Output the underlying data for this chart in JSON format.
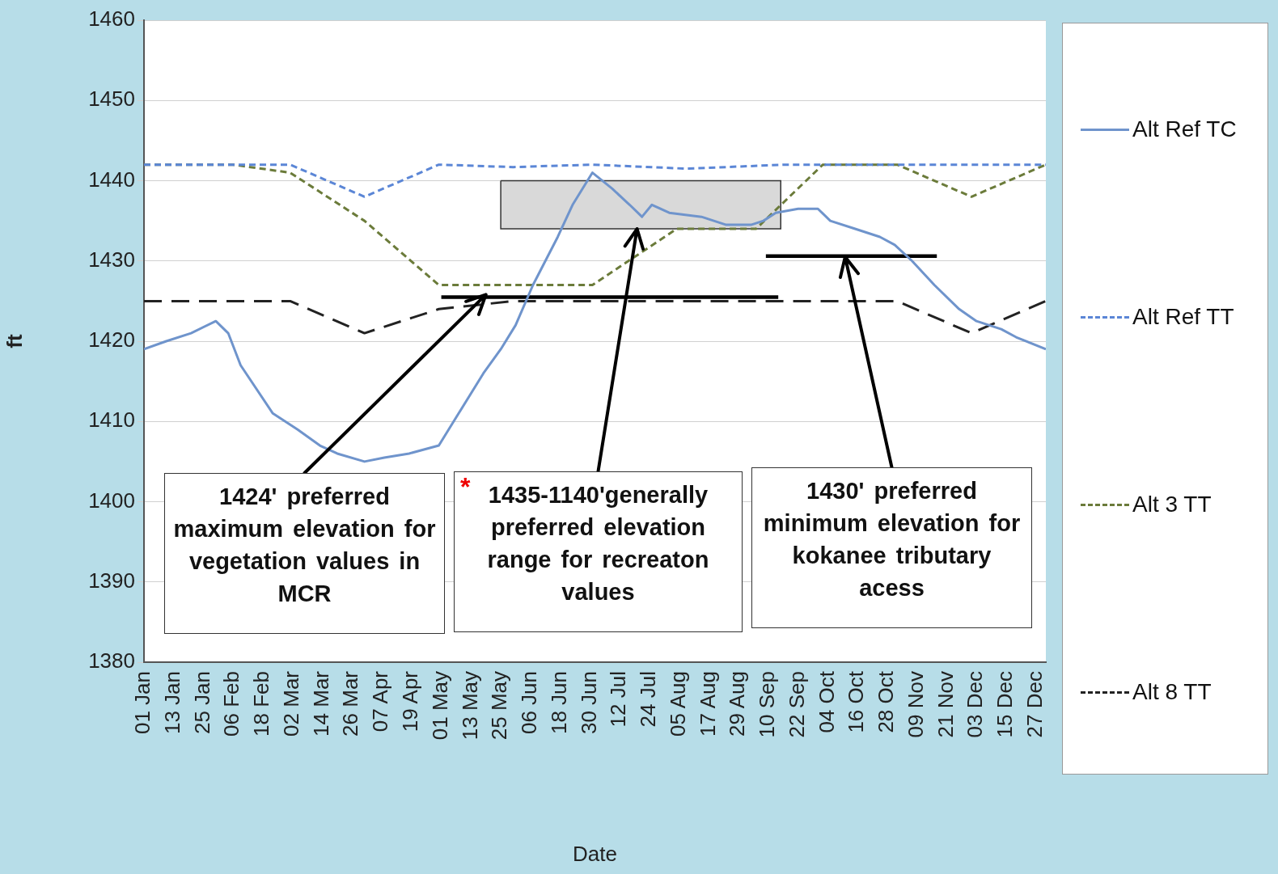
{
  "chart_data": {
    "type": "line",
    "xlabel": "Date",
    "ylabel": "ft",
    "xlim": [
      "--01-01",
      "--12-31"
    ],
    "ylim": [
      1380,
      1460
    ],
    "yticks": [
      1380,
      1390,
      1400,
      1410,
      1420,
      1430,
      1440,
      1450,
      1460
    ],
    "xticks": [
      {
        "value": "--01-01",
        "label": "01 Jan"
      },
      {
        "value": "--01-13",
        "label": "13 Jan"
      },
      {
        "value": "--01-25",
        "label": "25 Jan"
      },
      {
        "value": "--02-06",
        "label": "06 Feb"
      },
      {
        "value": "--02-18",
        "label": "18 Feb"
      },
      {
        "value": "--03-02",
        "label": "02 Mar"
      },
      {
        "value": "--03-14",
        "label": "14 Mar"
      },
      {
        "value": "--03-26",
        "label": "26 Mar"
      },
      {
        "value": "--04-07",
        "label": "07 Apr"
      },
      {
        "value": "--04-19",
        "label": "19 Apr"
      },
      {
        "value": "--05-01",
        "label": "01 May"
      },
      {
        "value": "--05-13",
        "label": "13 May"
      },
      {
        "value": "--05-25",
        "label": "25 May"
      },
      {
        "value": "--06-06",
        "label": "06 Jun"
      },
      {
        "value": "--06-18",
        "label": "18 Jun"
      },
      {
        "value": "--06-30",
        "label": "30 Jun"
      },
      {
        "value": "--07-12",
        "label": "12 Jul"
      },
      {
        "value": "--07-24",
        "label": "24 Jul"
      },
      {
        "value": "--08-05",
        "label": "05 Aug"
      },
      {
        "value": "--08-17",
        "label": "17 Aug"
      },
      {
        "value": "--08-29",
        "label": "29 Aug"
      },
      {
        "value": "--09-10",
        "label": "10 Sep"
      },
      {
        "value": "--09-22",
        "label": "22 Sep"
      },
      {
        "value": "--10-04",
        "label": "04 Oct"
      },
      {
        "value": "--10-16",
        "label": "16 Oct"
      },
      {
        "value": "--10-28",
        "label": "28 Oct"
      },
      {
        "value": "--11-09",
        "label": "09 Nov"
      },
      {
        "value": "--11-21",
        "label": "21 Nov"
      },
      {
        "value": "--12-03",
        "label": "03 Dec"
      },
      {
        "value": "--12-15",
        "label": "15 Dec"
      },
      {
        "value": "--12-27",
        "label": "27 Dec"
      }
    ],
    "grid": "y",
    "legend": "right",
    "marker": "none",
    "series": [
      {
        "type": "area",
        "color": "#d9d9d9",
        "x": [
          "--05-25",
          "--09-15",
          "--09-15",
          "--05-25",
          "--05-25"
        ],
        "values": [
          1440,
          1440,
          1434,
          1434,
          1440
        ]
      },
      {
        "name": "Alt Ref TC",
        "color": "#6f94cc",
        "line_style": "solid",
        "x": [
          "--01-01",
          "--01-10",
          "--01-20",
          "--01-30",
          "--02-04",
          "--02-09",
          "--02-22",
          "--03-04",
          "--03-13",
          "--03-20",
          "--03-31",
          "--04-08",
          "--04-18",
          "--04-30",
          "--05-08",
          "--05-18",
          "--05-25",
          "--05-31",
          "--06-07",
          "--06-17",
          "--06-23",
          "--07-01",
          "--07-09",
          "--07-16",
          "--07-21",
          "--07-25",
          "--08-01",
          "--08-14",
          "--08-24",
          "--09-03",
          "--09-08",
          "--09-13",
          "--09-22",
          "--09-30",
          "--10-05",
          "--10-15",
          "--10-25",
          "--10-31",
          "--11-07",
          "--11-16",
          "--11-26",
          "--12-03",
          "--12-13",
          "--12-19",
          "--12-31"
        ],
        "values": [
          1419,
          1420,
          1421,
          1422.5,
          1421,
          1417,
          1411,
          1409,
          1407,
          1406,
          1405,
          1405.5,
          1406,
          1407,
          1411,
          1416,
          1419,
          1422,
          1427,
          1433,
          1437,
          1441,
          1439,
          1437,
          1435.5,
          1437,
          1436,
          1435.5,
          1434.5,
          1434.5,
          1435,
          1436,
          1436.5,
          1436.5,
          1435,
          1434,
          1433,
          1432,
          1430,
          1427,
          1424,
          1422.5,
          1421.5,
          1420.5,
          1419
        ]
      },
      {
        "name": "Alt Ref TT",
        "color": "#5b86d6",
        "line_style": "dotted",
        "x": [
          "--01-01",
          "--03-01",
          "--03-31",
          "--04-30",
          "--05-30",
          "--07-01",
          "--08-08",
          "--09-17",
          "--12-31"
        ],
        "values": [
          1442,
          1442,
          1438,
          1442,
          1441.7,
          1442,
          1441.5,
          1442,
          1442
        ]
      },
      {
        "name": "Alt 3 TT",
        "color": "#6b7b3a",
        "line_style": "dotted",
        "x": [
          "--01-01",
          "--02-06",
          "--03-01",
          "--03-31",
          "--04-30",
          "--07-01",
          "--08-04",
          "--09-05",
          "--10-02",
          "--11-01",
          "--12-01",
          "--12-31"
        ],
        "values": [
          1442,
          1442,
          1441,
          1435,
          1427,
          1427,
          1434,
          1434,
          1442,
          1442,
          1438,
          1442
        ]
      },
      {
        "name": "Alt 8 TT",
        "color": "#222222",
        "line_style": "dashed",
        "x": [
          "--01-01",
          "--03-01",
          "--03-31",
          "--04-30",
          "--05-30",
          "--11-01",
          "--12-01",
          "--12-31"
        ],
        "values": [
          1425,
          1425,
          1421,
          1424,
          1425,
          1425,
          1421,
          1425
        ]
      },
      {
        "color": "#000000",
        "line_style": "solid",
        "x": [
          "--05-01",
          "--09-14"
        ],
        "values": [
          1425.5,
          1425.5
        ]
      },
      {
        "color": "#000000",
        "line_style": "solid",
        "x": [
          "--09-09",
          "--11-17"
        ],
        "values": [
          1430.6,
          1430.6
        ]
      }
    ],
    "annotations": [
      "*",
      {
        "text": "1424' preferred maximum  elevation for vegetation values in MCR",
        "x": "--05-19",
        "y": 1425.8
      },
      {
        "text": "1435-1140'generally preferred  elevation range for recreaton values",
        "x": "--07-19",
        "y": 1434
      },
      {
        "text": "1430' preferred minimum  elevation for kokanee tributary acess",
        "x": "--10-11",
        "y": 1430.5
      }
    ]
  }
}
